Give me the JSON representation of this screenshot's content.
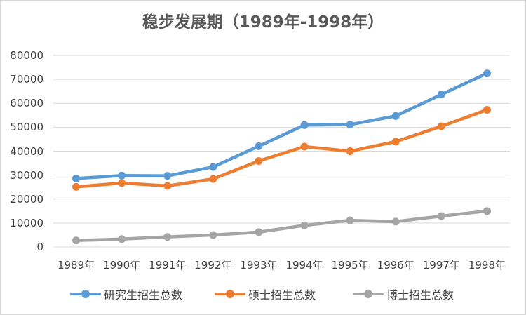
{
  "chart_data": {
    "type": "line",
    "title": "稳步发展期（1989年-1998年）",
    "categories": [
      "1989年",
      "1990年",
      "1991年",
      "1992年",
      "1993年",
      "1994年",
      "1995年",
      "1996年",
      "1997年",
      "1998年"
    ],
    "ylim": [
      0,
      80000
    ],
    "yticks": [
      "0",
      "10000",
      "20000",
      "30000",
      "40000",
      "50000",
      "60000",
      "70000",
      "80000"
    ],
    "grid": true,
    "legend_position": "bottom",
    "series": [
      {
        "name": "研究生招生总数",
        "color": "#5b9bd5",
        "values": [
          28600,
          29800,
          29700,
          33400,
          42100,
          50900,
          51100,
          54700,
          63700,
          72500
        ]
      },
      {
        "name": "硕士招生总数",
        "color": "#ed7d31",
        "values": [
          25100,
          26700,
          25500,
          28400,
          35900,
          41900,
          40000,
          44000,
          50400,
          57300
        ]
      },
      {
        "name": "博士招生总数",
        "color": "#a5a5a5",
        "values": [
          2700,
          3300,
          4200,
          5000,
          6200,
          9000,
          11100,
          10600,
          12900,
          15000
        ]
      }
    ]
  }
}
